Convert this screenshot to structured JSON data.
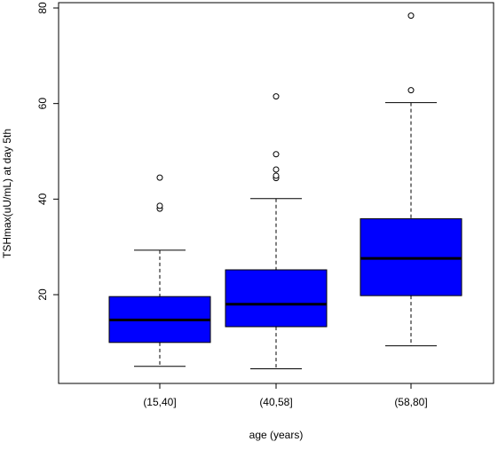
{
  "chart_data": {
    "type": "boxplot",
    "xlabel": "age (years)",
    "ylabel": "TSHmax(uU/mL) at day 5th",
    "ylim": [
      0,
      81
    ],
    "y_ticks": [
      20,
      40,
      60,
      80
    ],
    "box_color": "#0000ff",
    "categories": [
      "(15,40]",
      "(40,58]",
      "(58,80]"
    ],
    "boxes": [
      {
        "category": "(15,40]",
        "whisker_low": 5,
        "q1": 10,
        "median": 14.7,
        "q3": 19.6,
        "whisker_high": 29.3,
        "outliers": [
          38,
          38.6,
          44.5
        ]
      },
      {
        "category": "(40,58]",
        "whisker_low": 4.5,
        "q1": 13.3,
        "median": 18,
        "q3": 25.2,
        "whisker_high": 40.1,
        "outliers": [
          44.4,
          44.9,
          46.2,
          49.4,
          61.5
        ]
      },
      {
        "category": "(58,80]",
        "whisker_low": 9.3,
        "q1": 19.8,
        "median": 27.6,
        "q3": 35.9,
        "whisker_high": 60.2,
        "outliers": [
          62.8,
          78.4
        ]
      }
    ]
  }
}
